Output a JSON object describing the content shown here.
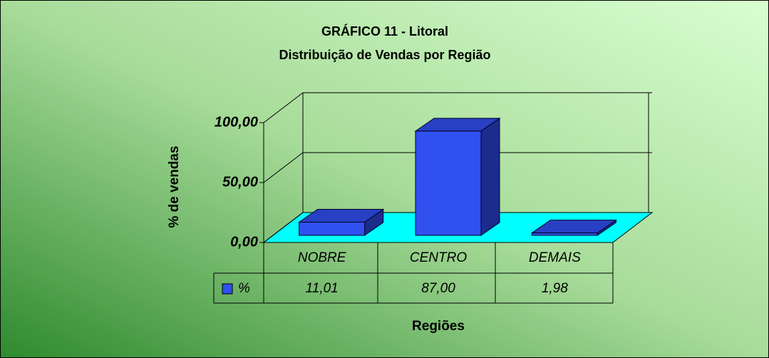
{
  "chart_data": {
    "type": "bar3d",
    "title": "GRÁFICO 11 - Litoral",
    "subtitle": "Distribuição de Vendas por Região",
    "xlabel": "Regiões",
    "ylabel": "% de vendas",
    "categories": [
      "NOBRE",
      "CENTRO",
      "DEMAIS"
    ],
    "series": [
      {
        "name": "%",
        "color": "#3050f0",
        "values": [
          11.01,
          87.0,
          1.98
        ],
        "value_labels": [
          "11,01",
          "87,00",
          "1,98"
        ]
      }
    ],
    "ylim": [
      0,
      100
    ],
    "yticks": [
      {
        "value": 0,
        "label": "0,00"
      },
      {
        "value": 50,
        "label": "50,00"
      },
      {
        "value": 100,
        "label": "100,00"
      }
    ],
    "grid": true,
    "floor_color": "#00ffff"
  }
}
